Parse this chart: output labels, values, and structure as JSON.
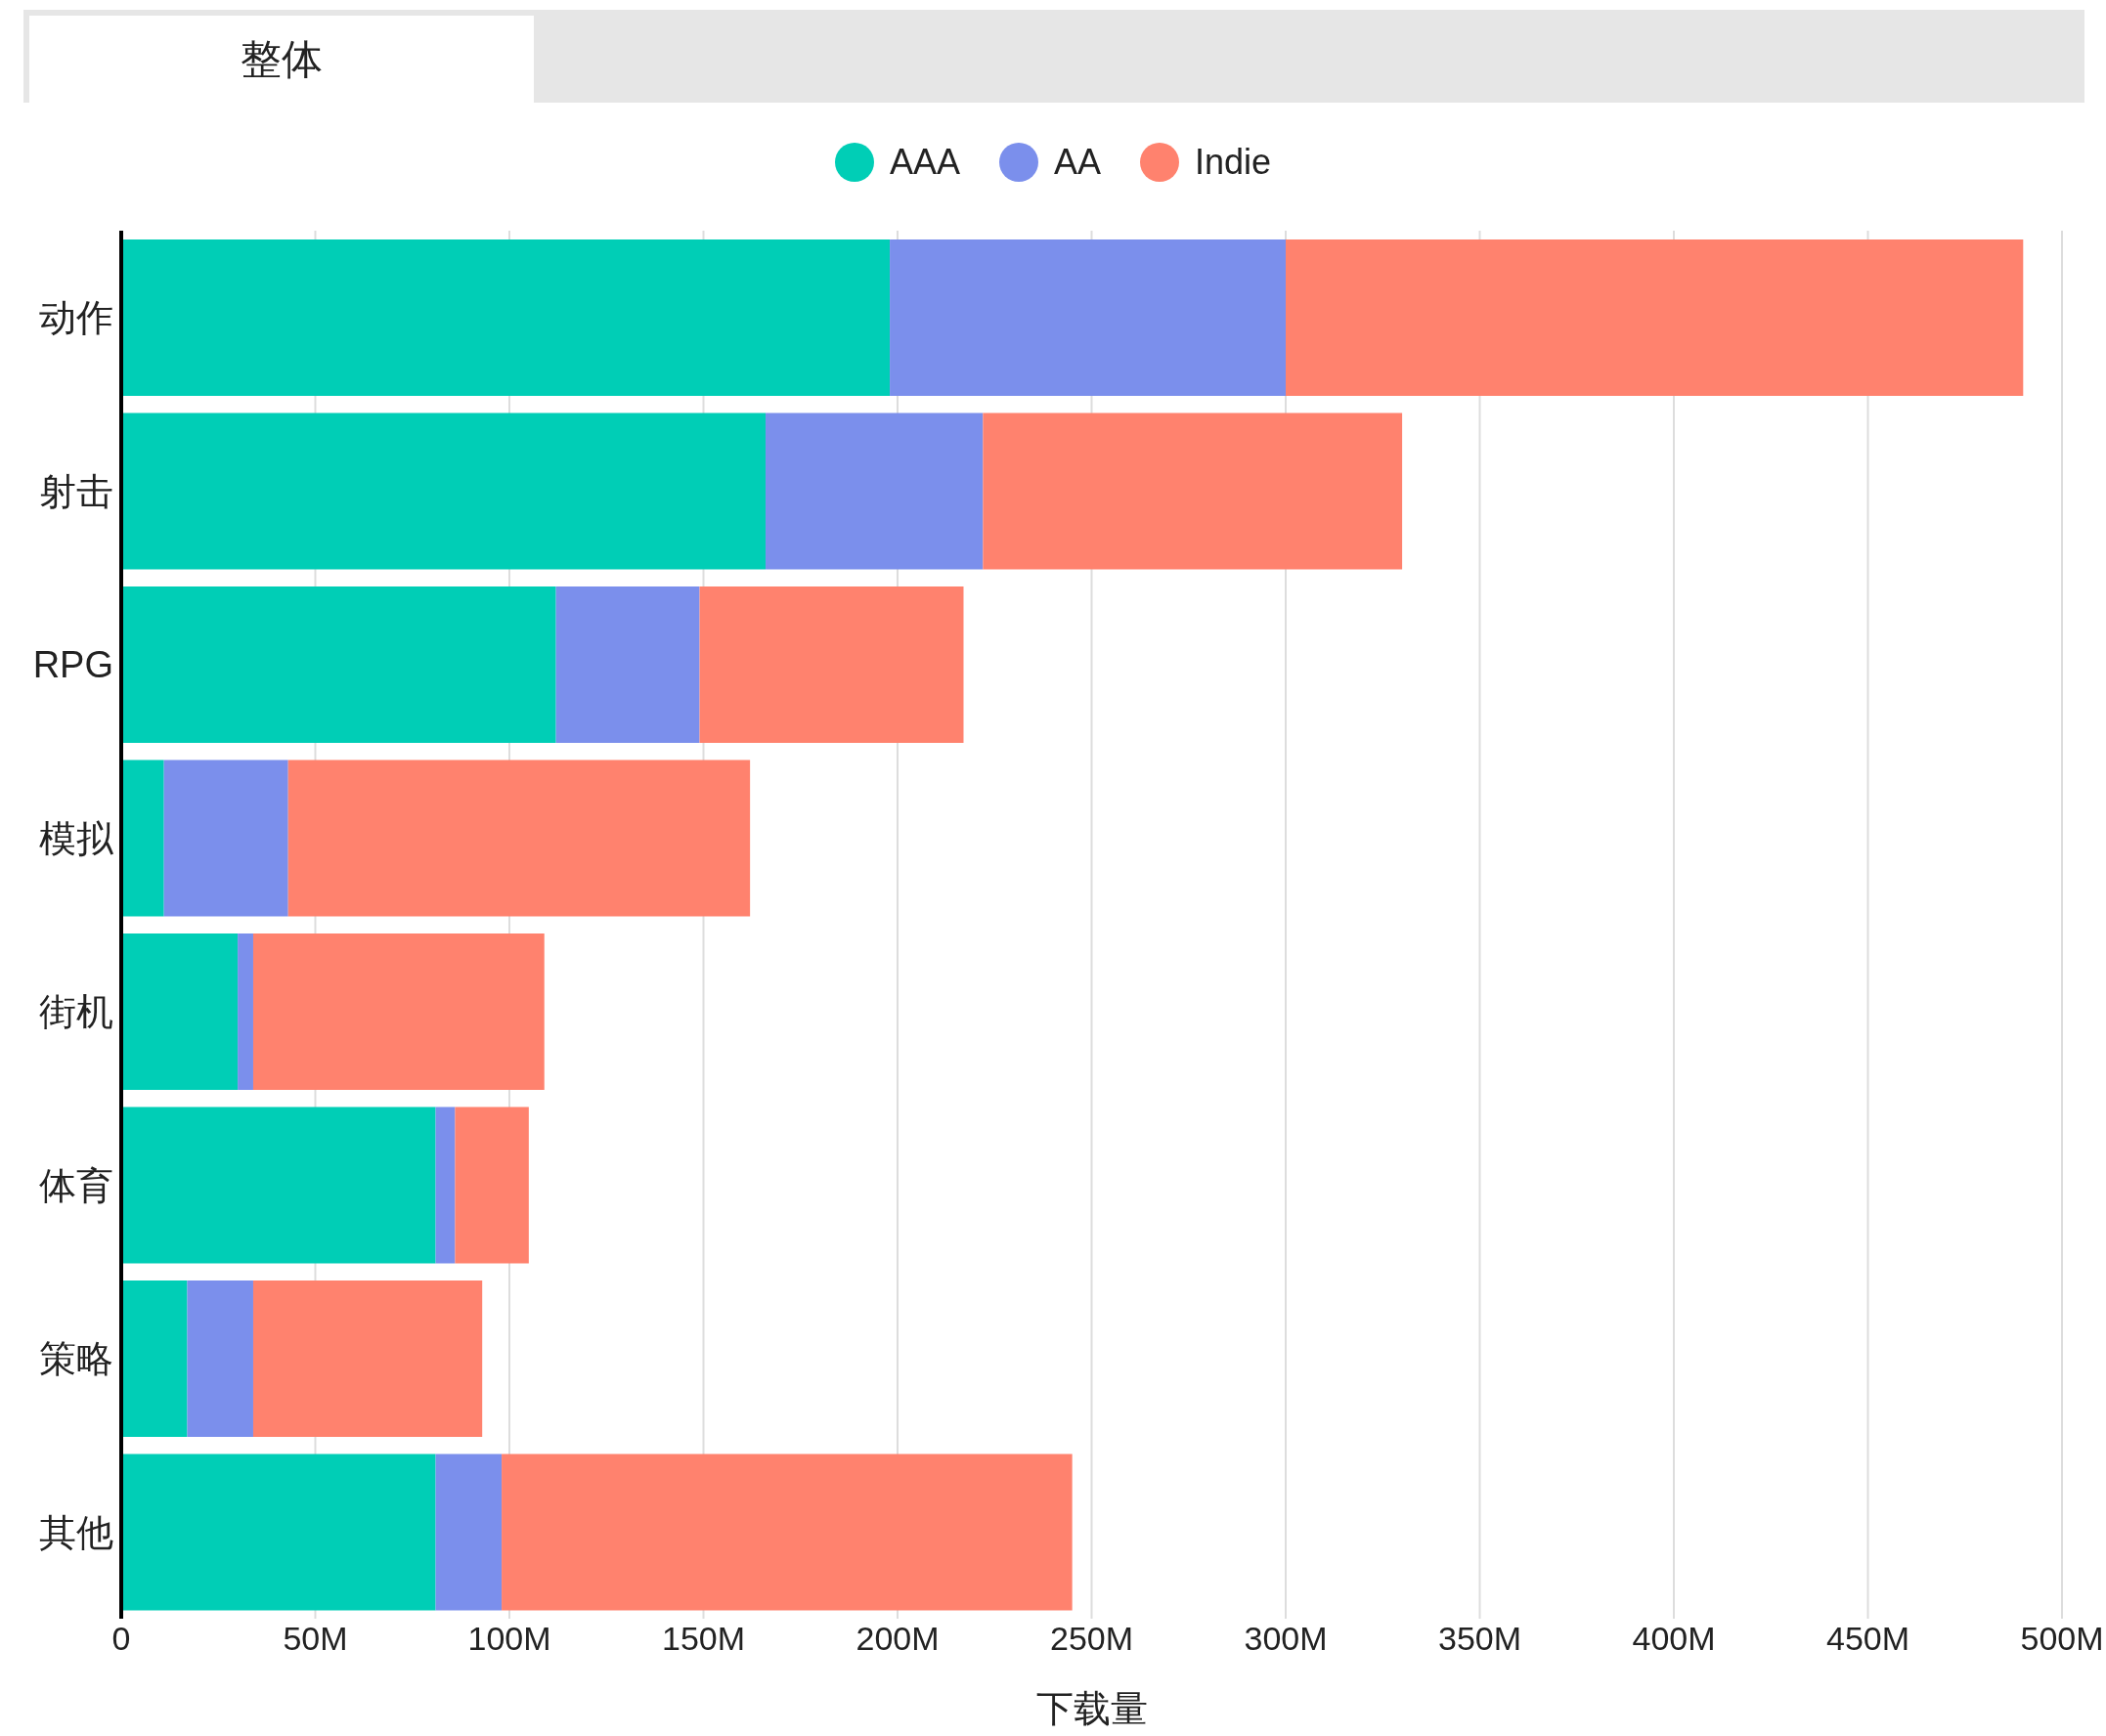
{
  "chart_data": {
    "type": "bar",
    "orientation": "horizontal",
    "stacked": true,
    "annotations": [
      "整体"
    ],
    "categories": [
      "动作",
      "射击",
      "RPG",
      "模拟",
      "街机",
      "体育",
      "策略",
      "其他"
    ],
    "series": [
      {
        "name": "AAA",
        "color": "#00ceb6",
        "values": [
          198,
          166,
          112,
          11,
          30,
          81,
          17,
          81
        ]
      },
      {
        "name": "AA",
        "color": "#7b8fec",
        "values": [
          102,
          56,
          37,
          32,
          4,
          5,
          17,
          17
        ]
      },
      {
        "name": "Indie",
        "color": "#ff826e",
        "values": [
          190,
          108,
          68,
          119,
          75,
          19,
          59,
          147
        ]
      }
    ],
    "xlabel": "下载量",
    "xlim": [
      0,
      500
    ],
    "xticks": [
      0,
      {
        "value": 50,
        "label": "50M"
      },
      {
        "value": 100,
        "label": "100M"
      },
      {
        "value": 150,
        "label": "150M"
      },
      {
        "value": 200,
        "label": "200M"
      },
      {
        "value": 250,
        "label": "250M"
      },
      {
        "value": 300,
        "label": "300M"
      },
      {
        "value": 350,
        "label": "350M"
      },
      {
        "value": 400,
        "label": "400M"
      },
      {
        "value": 450,
        "label": "450M"
      },
      {
        "value": 500,
        "label": "500M"
      }
    ],
    "grid": "x",
    "legend": "top"
  }
}
